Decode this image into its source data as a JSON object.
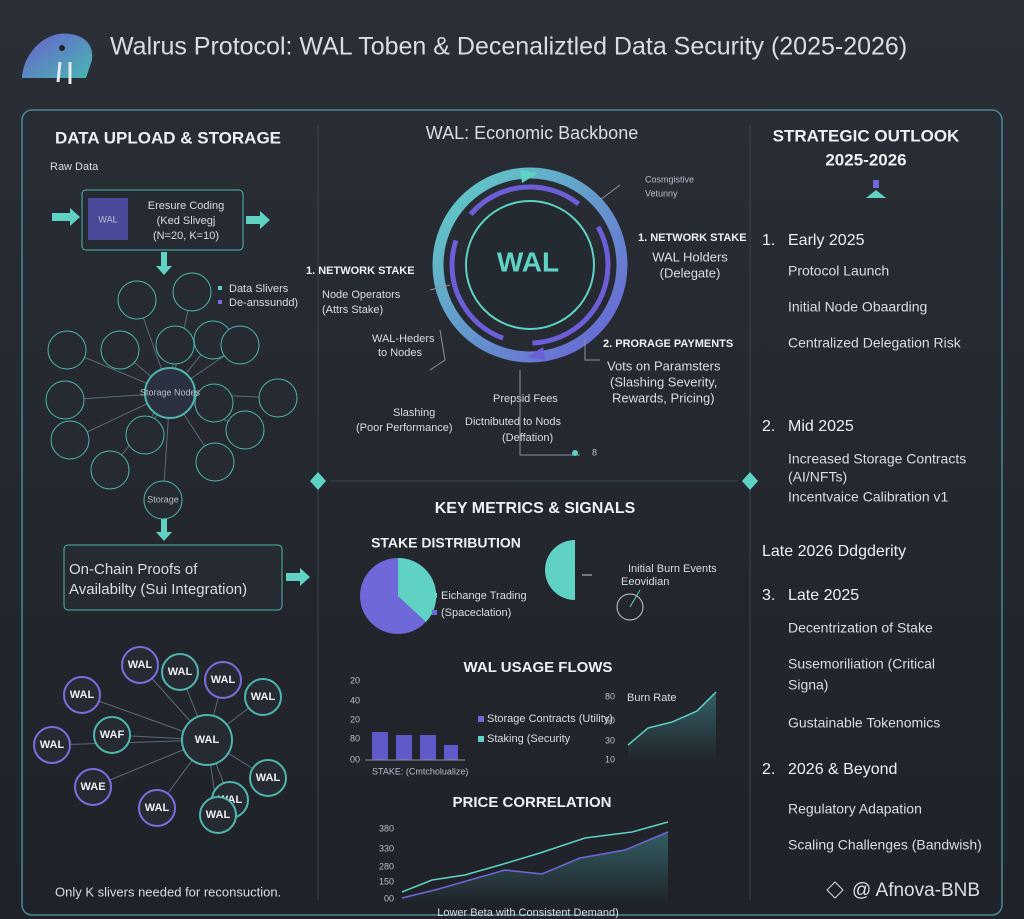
{
  "header": {
    "title": "Walrus Protocol: WAL Toben & Decenaliztled Data Security (2025-2026)"
  },
  "storage": {
    "heading": "DATA UPLOAD & STORAGE",
    "raw_data": "Raw Data",
    "encoding": {
      "chip": "WAL",
      "lines": [
        "Eresure Coding",
        "(Ked Slivegj",
        "(N=20, K=10)"
      ]
    },
    "legend": [
      "Data Slivers",
      "De-anssundd)"
    ],
    "nodes": [
      "Storage Nodes",
      "Storage"
    ],
    "proofs": [
      "On-Chain Proofs of",
      "Availabilty (Sui Integration)"
    ],
    "wal_nodes": [
      "WAL",
      "WAL",
      "WAL",
      "WAL",
      "WAL",
      "WAL",
      "WAF",
      "WAL",
      "WAL",
      "WAE",
      "WAL",
      "WAL",
      "WAL"
    ],
    "footnote": "Only K slivers needed for reconsuction."
  },
  "economy": {
    "heading": "WAL: Economic Backbone",
    "center": "WAL",
    "top_note": [
      "Cosmgistive",
      "Vetunny"
    ],
    "right_stake": {
      "title": "1. NETWORK STAKE",
      "lines": [
        "WAL Holders",
        "(Delegate)"
      ]
    },
    "left_stake": {
      "title": "1. NETWORK STAKE",
      "lines": [
        "Node Operators",
        "(Attrs Stake)"
      ]
    },
    "delegation": [
      "WAL-Heders",
      "to Nodes"
    ],
    "payments": {
      "title": "2. PRORAGE PAYMENTS",
      "lines": [
        "Vots on Paramsters",
        "(Slashing Severity,",
        "Rewards, Pricing)"
      ]
    },
    "fees": [
      "Prepsid Fees",
      "Dictnibuted to Nods",
      "(Deffation)"
    ],
    "slashing": [
      "Slashing",
      "(Poor Performance)"
    ],
    "marker": "8"
  },
  "metrics": {
    "heading": "KEY METRICS & SIGNALS",
    "stake": {
      "title": "STAKE DISTRIBUTION",
      "legend": [
        "Eichange Trading",
        "(Spaceclation)"
      ]
    },
    "burn_events": [
      "Initial Burn Events",
      "Eeovidian"
    ],
    "usage": {
      "title": "WAL USAGE FLOWS",
      "ticks": [
        "20",
        "40",
        "20",
        "80",
        "00"
      ],
      "axis_label": "STAKE: (Cmtcholualize)",
      "legend": [
        "Storage Contracts (Utility)",
        "Staking (Security"
      ]
    },
    "burn": {
      "title": "Burn Rate",
      "ticks": [
        "80",
        "50",
        "30",
        "10"
      ]
    },
    "price": {
      "title": "PRICE CORRELATION",
      "ticks": [
        "380",
        "330",
        "280",
        "150",
        "00"
      ],
      "caption": "Lower Beta with Consistent Demand)"
    }
  },
  "outlook": {
    "heading": [
      "STRATEGIC OUTLOOK",
      "2025-2026"
    ],
    "phases": [
      {
        "number": "1.",
        "title": "Early 2025",
        "items": [
          "Protocol Launch",
          "Initial Node Obaarding",
          "Centralized Delegation Risk"
        ]
      },
      {
        "number": "2.",
        "title": "Mid 2025",
        "items": [
          "Increased Storage Contracts",
          "(AI/NFTs)",
          "Incentvaice Calibration v1"
        ]
      },
      {
        "title": "Late 2026 Ddgderity"
      },
      {
        "number": "3.",
        "title": "Late 2025",
        "items": [
          "Decentrization of Stake",
          "Susemoriliation (Critical",
          "Signa)",
          "Gustainable Tokenomics"
        ]
      },
      {
        "number": "2.",
        "title": "2026 & Beyond",
        "items": [
          "Regulatory Adapation",
          "Scaling Challenges (Bandwish)"
        ]
      }
    ]
  },
  "watermark": "@ Afnova-BNB"
}
